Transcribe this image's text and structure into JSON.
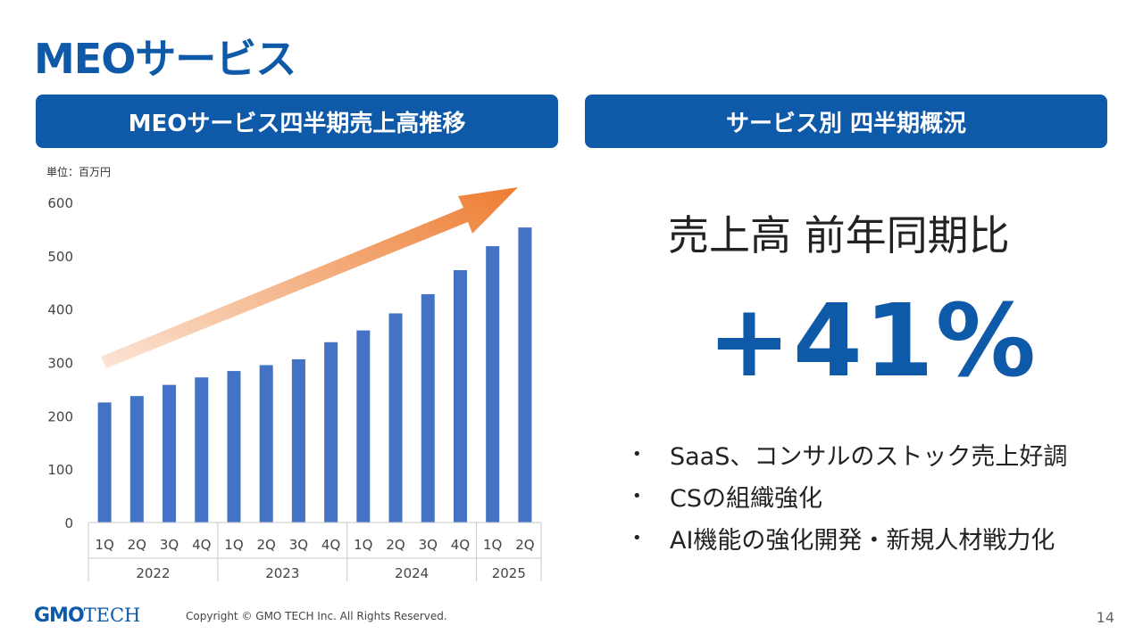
{
  "title": "MEOサービス",
  "left_header": "MEOサービス四半期売上高推移",
  "right_header": "サービス別 四半期概況",
  "unit_label": "単位：百万円",
  "right": {
    "headline": "売上高 前年同期比",
    "big_value": "+41%",
    "bullets": [
      "SaaS、コンサルのストック売上好調",
      "CSの組織強化",
      "AI機能の強化開発・新規人材戦力化"
    ]
  },
  "footer": {
    "logo_main": "GMO",
    "logo_sub": "TECH",
    "copyright": "Copyright © GMO TECH Inc. All Rights Reserved.",
    "page": "14"
  },
  "colors": {
    "brand": "#0f5aa8",
    "bar": "#4472c4",
    "arrow_start": "#fbe5d6",
    "arrow_end": "#ed7d31"
  },
  "chart_data": {
    "type": "bar",
    "categories": [
      "1Q",
      "2Q",
      "3Q",
      "4Q",
      "1Q",
      "2Q",
      "3Q",
      "4Q",
      "1Q",
      "2Q",
      "3Q",
      "4Q",
      "1Q",
      "2Q"
    ],
    "groups": [
      {
        "label": "2022",
        "count": 4
      },
      {
        "label": "2023",
        "count": 4
      },
      {
        "label": "2024",
        "count": 4
      },
      {
        "label": "2025",
        "count": 2
      }
    ],
    "values": [
      225,
      237,
      258,
      272,
      284,
      295,
      306,
      338,
      360,
      392,
      428,
      473,
      518,
      553
    ],
    "ylim": [
      0,
      600
    ],
    "yticks": [
      0,
      100,
      200,
      300,
      400,
      500,
      600
    ],
    "grid": false,
    "annotation": "upward trend arrow"
  }
}
